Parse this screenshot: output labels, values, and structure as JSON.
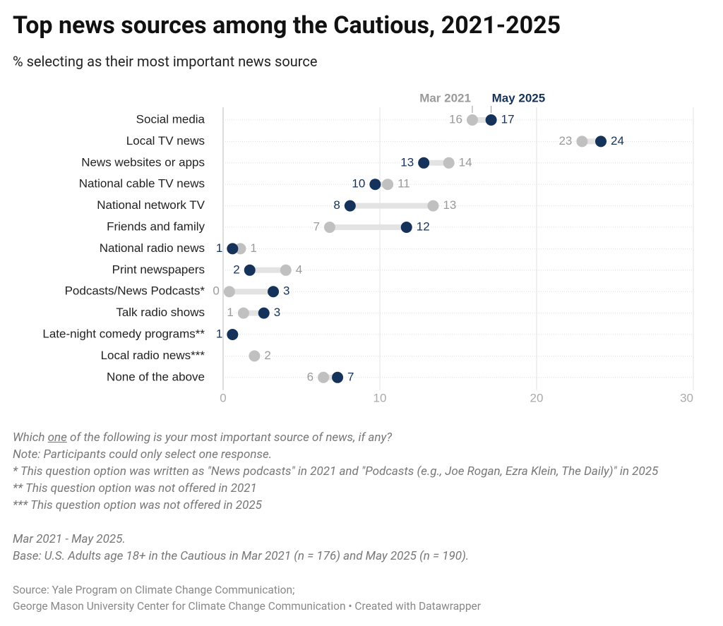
{
  "chart_data": {
    "type": "dumbbell",
    "title": "Top news sources among the Cautious, 2021-2025",
    "subtitle": "% selecting as their most important news source",
    "categories": [
      "Social media",
      "Local TV news",
      "News websites or apps",
      "National cable TV news",
      "National network TV",
      "Friends and family",
      "National radio news",
      "Print newspapers",
      "Podcasts/News Podcasts*",
      "Talk radio shows",
      "Late-night comedy programs**",
      "Local radio news***",
      "None of the above"
    ],
    "series": [
      {
        "name": "Mar 2021",
        "color": "#c0c0c0",
        "label_color": "#9a9a9a",
        "values": [
          15.9,
          22.9,
          14.4,
          10.5,
          13.4,
          6.8,
          1.1,
          4.0,
          0.4,
          1.3,
          null,
          2.0,
          6.4
        ],
        "value_labels": [
          "16",
          "23",
          "14",
          "11",
          "13",
          "7",
          "1",
          "4",
          "0",
          "1",
          null,
          "2",
          "6"
        ]
      },
      {
        "name": "May 2025",
        "color": "#15325a",
        "label_color": "#15325a",
        "values": [
          17.1,
          24.1,
          12.8,
          9.7,
          8.1,
          11.7,
          0.6,
          1.7,
          3.2,
          2.6,
          0.6,
          null,
          7.3
        ],
        "value_labels": [
          "17",
          "24",
          "13",
          "10",
          "8",
          "12",
          "1",
          "2",
          "3",
          "3",
          "1",
          null,
          "7"
        ]
      }
    ],
    "xlim": [
      0,
      30
    ],
    "xticks": [
      0,
      10,
      20,
      30
    ],
    "grid": true,
    "question_parts": [
      "Which ",
      "one",
      " of the following is your most important source of news, if any?"
    ],
    "notes": [
      "Note: Participants could only select one response.",
      "* This question option was written as \"News podcasts\" in 2021 and \"Podcasts (e.g., Joe Rogan, Ezra Klein, The Daily)\" in 2025",
      "** This question option was not offered in 2021",
      "*** This question option was not offered in 2025"
    ],
    "period": "Mar 2021 - May 2025.",
    "base": "Base: U.S. Adults age 18+ in the Cautious in Mar 2021 (n = 176) and May 2025 (n = 190).",
    "source": [
      "Source: Yale Program on Climate Change Communication;",
      "George Mason University Center for Climate Change Communication • Created with Datawrapper"
    ]
  }
}
